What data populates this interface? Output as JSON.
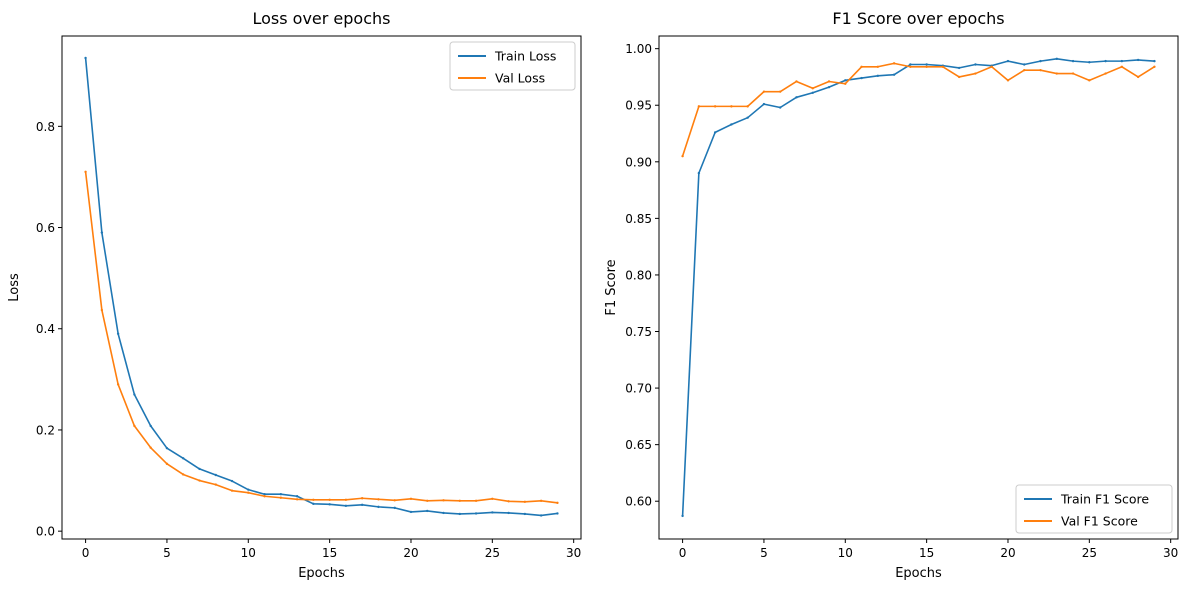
{
  "chart_data": [
    {
      "type": "line",
      "title": "Loss over epochs",
      "xlabel": "Epochs",
      "ylabel": "Loss",
      "xlim": [
        -1.45,
        30.45
      ],
      "ylim": [
        -0.0155,
        0.9785
      ],
      "xticks": [
        0,
        5,
        10,
        15,
        20,
        25,
        30
      ],
      "yticks": [
        0.0,
        0.2,
        0.4,
        0.6,
        0.8
      ],
      "ytick_format": 1,
      "legend": "top-right",
      "grid": false,
      "x": [
        0,
        1,
        2,
        3,
        4,
        5,
        6,
        7,
        8,
        9,
        10,
        11,
        12,
        13,
        14,
        15,
        16,
        17,
        18,
        19,
        20,
        21,
        22,
        23,
        24,
        25,
        26,
        27,
        28,
        29
      ],
      "series": [
        {
          "name": "Train Loss",
          "color": "#1f77b4",
          "values": [
            0.935,
            0.59,
            0.39,
            0.27,
            0.208,
            0.164,
            0.144,
            0.123,
            0.111,
            0.099,
            0.082,
            0.073,
            0.073,
            0.069,
            0.054,
            0.053,
            0.05,
            0.052,
            0.048,
            0.046,
            0.038,
            0.04,
            0.036,
            0.034,
            0.035,
            0.037,
            0.036,
            0.034,
            0.031,
            0.035
          ]
        },
        {
          "name": "Val Loss",
          "color": "#ff7f0e",
          "values": [
            0.71,
            0.437,
            0.29,
            0.208,
            0.165,
            0.133,
            0.112,
            0.1,
            0.092,
            0.08,
            0.076,
            0.069,
            0.066,
            0.063,
            0.062,
            0.062,
            0.062,
            0.065,
            0.063,
            0.061,
            0.064,
            0.06,
            0.061,
            0.06,
            0.06,
            0.064,
            0.059,
            0.058,
            0.06,
            0.056
          ]
        }
      ]
    },
    {
      "type": "line",
      "title": "F1 Score over epochs",
      "xlabel": "Epochs",
      "ylabel": "F1 Score",
      "xlim": [
        -1.45,
        30.45
      ],
      "ylim": [
        0.5666,
        1.0112
      ],
      "xticks": [
        0,
        5,
        10,
        15,
        20,
        25,
        30
      ],
      "yticks": [
        0.6,
        0.65,
        0.7,
        0.75,
        0.8,
        0.85,
        0.9,
        0.95,
        1.0
      ],
      "ytick_format": 2,
      "legend": "bottom-right",
      "grid": false,
      "x": [
        0,
        1,
        2,
        3,
        4,
        5,
        6,
        7,
        8,
        9,
        10,
        11,
        12,
        13,
        14,
        15,
        16,
        17,
        18,
        19,
        20,
        21,
        22,
        23,
        24,
        25,
        26,
        27,
        28,
        29
      ],
      "series": [
        {
          "name": "Train F1 Score",
          "color": "#1f77b4",
          "values": [
            0.587,
            0.89,
            0.926,
            0.933,
            0.939,
            0.951,
            0.948,
            0.957,
            0.961,
            0.966,
            0.972,
            0.974,
            0.976,
            0.977,
            0.986,
            0.986,
            0.985,
            0.983,
            0.986,
            0.985,
            0.989,
            0.986,
            0.989,
            0.991,
            0.989,
            0.988,
            0.989,
            0.989,
            0.99,
            0.989
          ]
        },
        {
          "name": "Val F1 Score",
          "color": "#ff7f0e",
          "values": [
            0.905,
            0.949,
            0.949,
            0.949,
            0.949,
            0.962,
            0.962,
            0.971,
            0.965,
            0.971,
            0.969,
            0.984,
            0.984,
            0.987,
            0.984,
            0.984,
            0.984,
            0.975,
            0.978,
            0.984,
            0.972,
            0.981,
            0.981,
            0.978,
            0.978,
            0.972,
            0.978,
            0.984,
            0.975,
            0.984
          ]
        }
      ]
    }
  ]
}
